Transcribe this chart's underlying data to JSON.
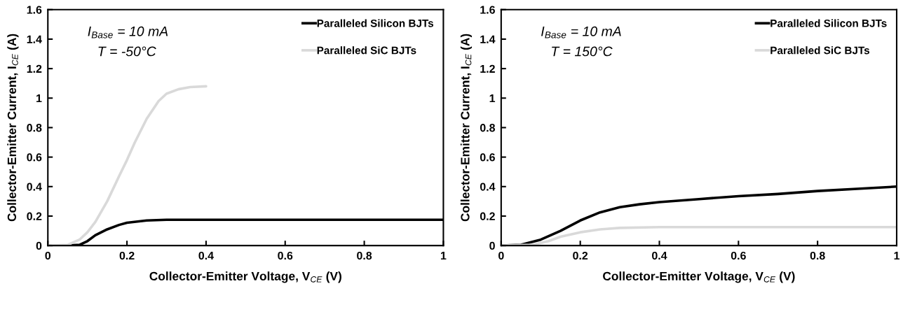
{
  "chart_data": [
    {
      "type": "line",
      "xlabel": "Collector-Emitter Voltage, V$_{CE}$ (V)",
      "ylabel": "Collector-Emitter Current, I$_{CE}$ (A)",
      "annotations": [
        "I$_{Base}$ = 10 mA",
        "T = -50°C"
      ],
      "xlim": [
        0,
        1
      ],
      "xticks": [
        0,
        0.2,
        0.4,
        0.6,
        0.8,
        1
      ],
      "ylim": [
        0,
        1.6
      ],
      "yticks": [
        0,
        0.2,
        0.4,
        0.6,
        0.8,
        1,
        1.2,
        1.4,
        1.6
      ],
      "grid": false,
      "legend": "top right",
      "series": [
        {
          "name": "Paralleled Silicon BJTs",
          "color": "#000000",
          "x": [
            0,
            0.05,
            0.08,
            0.1,
            0.12,
            0.15,
            0.18,
            0.2,
            0.25,
            0.3,
            0.4,
            1
          ],
          "values": [
            0,
            0,
            0.005,
            0.03,
            0.07,
            0.11,
            0.14,
            0.155,
            0.17,
            0.175,
            0.175,
            0.175
          ]
        },
        {
          "name": "Paralleled SiC BJTs",
          "color": "#d9d9d9",
          "x": [
            0,
            0.05,
            0.08,
            0.1,
            0.12,
            0.15,
            0.18,
            0.2,
            0.22,
            0.25,
            0.28,
            0.3,
            0.33,
            0.36,
            0.4
          ],
          "values": [
            0,
            0.005,
            0.04,
            0.09,
            0.16,
            0.3,
            0.47,
            0.58,
            0.7,
            0.86,
            0.98,
            1.03,
            1.06,
            1.075,
            1.08
          ]
        }
      ]
    },
    {
      "type": "line",
      "xlabel": "Collector-Emitter Voltage, V$_{CE}$ (V)",
      "ylabel": "Collector-Emitter Current, I$_{CE}$ (A)",
      "annotations": [
        "I$_{Base}$ = 10 mA",
        "T = 150°C"
      ],
      "xlim": [
        0,
        1
      ],
      "xticks": [
        0,
        0.2,
        0.4,
        0.6,
        0.8,
        1
      ],
      "ylim": [
        0,
        1.6
      ],
      "yticks": [
        0,
        0.2,
        0.4,
        0.6,
        0.8,
        1,
        1.2,
        1.4,
        1.6
      ],
      "grid": false,
      "legend": "top right",
      "series": [
        {
          "name": "Paralleled Silicon BJTs",
          "color": "#000000",
          "x": [
            0,
            0.05,
            0.1,
            0.15,
            0.2,
            0.25,
            0.3,
            0.35,
            0.4,
            0.5,
            0.6,
            0.7,
            0.8,
            0.9,
            1
          ],
          "values": [
            0,
            0.005,
            0.04,
            0.1,
            0.17,
            0.225,
            0.26,
            0.28,
            0.295,
            0.315,
            0.335,
            0.35,
            0.37,
            0.385,
            0.4
          ]
        },
        {
          "name": "Paralleled SiC BJTs",
          "color": "#d9d9d9",
          "x": [
            0,
            0.08,
            0.12,
            0.15,
            0.2,
            0.25,
            0.3,
            0.4,
            1
          ],
          "values": [
            0,
            0.005,
            0.03,
            0.06,
            0.09,
            0.11,
            0.12,
            0.125,
            0.125
          ]
        }
      ]
    }
  ]
}
